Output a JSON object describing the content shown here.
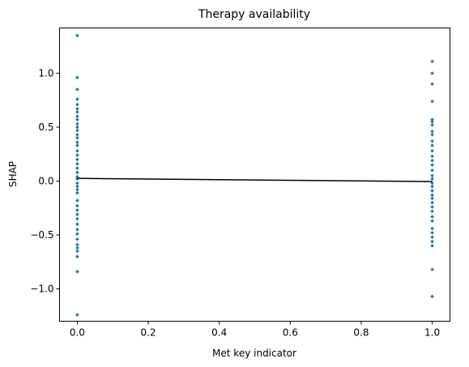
{
  "chart_data": {
    "type": "scatter",
    "title": "Therapy availability",
    "xlabel": "Met key indicator",
    "ylabel": "SHAP",
    "xlim": [
      -0.05,
      1.05
    ],
    "ylim": [
      -1.3,
      1.42
    ],
    "xticks": [
      {
        "value": 0.0,
        "label": "0.0"
      },
      {
        "value": 0.2,
        "label": "0.2"
      },
      {
        "value": 0.4,
        "label": "0.4"
      },
      {
        "value": 0.6,
        "label": "0.6"
      },
      {
        "value": 0.8,
        "label": "0.8"
      },
      {
        "value": 1.0,
        "label": "1.0"
      }
    ],
    "yticks": [
      {
        "value": -1.0,
        "label": "−1.0"
      },
      {
        "value": -0.5,
        "label": "−0.5"
      },
      {
        "value": 0.0,
        "label": "0.0"
      },
      {
        "value": 0.5,
        "label": "0.5"
      },
      {
        "value": 1.0,
        "label": "1.0"
      }
    ],
    "grid": false,
    "colors": {
      "points": "#1f77b4",
      "line": "#000000"
    },
    "points": [
      [
        0,
        1.35
      ],
      [
        0,
        0.96
      ],
      [
        0,
        0.85
      ],
      [
        0,
        0.76
      ],
      [
        0,
        0.71
      ],
      [
        0,
        0.67
      ],
      [
        0,
        0.64
      ],
      [
        0,
        0.6
      ],
      [
        0,
        0.57
      ],
      [
        0,
        0.53
      ],
      [
        0,
        0.5
      ],
      [
        0,
        0.47
      ],
      [
        0,
        0.43
      ],
      [
        0,
        0.4
      ],
      [
        0,
        0.36
      ],
      [
        0,
        0.33
      ],
      [
        0,
        0.28
      ],
      [
        0,
        0.24
      ],
      [
        0,
        0.2
      ],
      [
        0,
        0.16
      ],
      [
        0,
        0.12
      ],
      [
        0,
        0.08
      ],
      [
        0,
        0.04
      ],
      [
        0,
        0.02
      ],
      [
        0,
        -0.02
      ],
      [
        0,
        -0.05
      ],
      [
        0,
        -0.08
      ],
      [
        0,
        -0.11
      ],
      [
        0,
        -0.18
      ],
      [
        0,
        -0.23
      ],
      [
        0,
        -0.27
      ],
      [
        0,
        -0.31
      ],
      [
        0,
        -0.35
      ],
      [
        0,
        -0.4
      ],
      [
        0,
        -0.45
      ],
      [
        0,
        -0.49
      ],
      [
        0,
        -0.54
      ],
      [
        0,
        -0.59
      ],
      [
        0,
        -0.62
      ],
      [
        0,
        -0.65
      ],
      [
        0,
        -0.7
      ],
      [
        0,
        -0.84
      ],
      [
        0,
        -1.24
      ],
      [
        1,
        1.11
      ],
      [
        1,
        1.0
      ],
      [
        1,
        0.9
      ],
      [
        1,
        0.74
      ],
      [
        1,
        0.57
      ],
      [
        1,
        0.55
      ],
      [
        1,
        0.52
      ],
      [
        1,
        0.46
      ],
      [
        1,
        0.43
      ],
      [
        1,
        0.37
      ],
      [
        1,
        0.33
      ],
      [
        1,
        0.28
      ],
      [
        1,
        0.23
      ],
      [
        1,
        0.19
      ],
      [
        1,
        0.15
      ],
      [
        1,
        0.1
      ],
      [
        1,
        0.05
      ],
      [
        1,
        0.02
      ],
      [
        1,
        -0.02
      ],
      [
        1,
        -0.05
      ],
      [
        1,
        -0.09
      ],
      [
        1,
        -0.13
      ],
      [
        1,
        -0.16
      ],
      [
        1,
        -0.2
      ],
      [
        1,
        -0.24
      ],
      [
        1,
        -0.28
      ],
      [
        1,
        -0.33
      ],
      [
        1,
        -0.37
      ],
      [
        1,
        -0.44
      ],
      [
        1,
        -0.48
      ],
      [
        1,
        -0.52
      ],
      [
        1,
        -0.56
      ],
      [
        1,
        -0.6
      ],
      [
        1,
        -0.82
      ],
      [
        1,
        -1.07
      ]
    ],
    "trend_line": [
      [
        0,
        0.025
      ],
      [
        1,
        -0.005
      ]
    ]
  }
}
